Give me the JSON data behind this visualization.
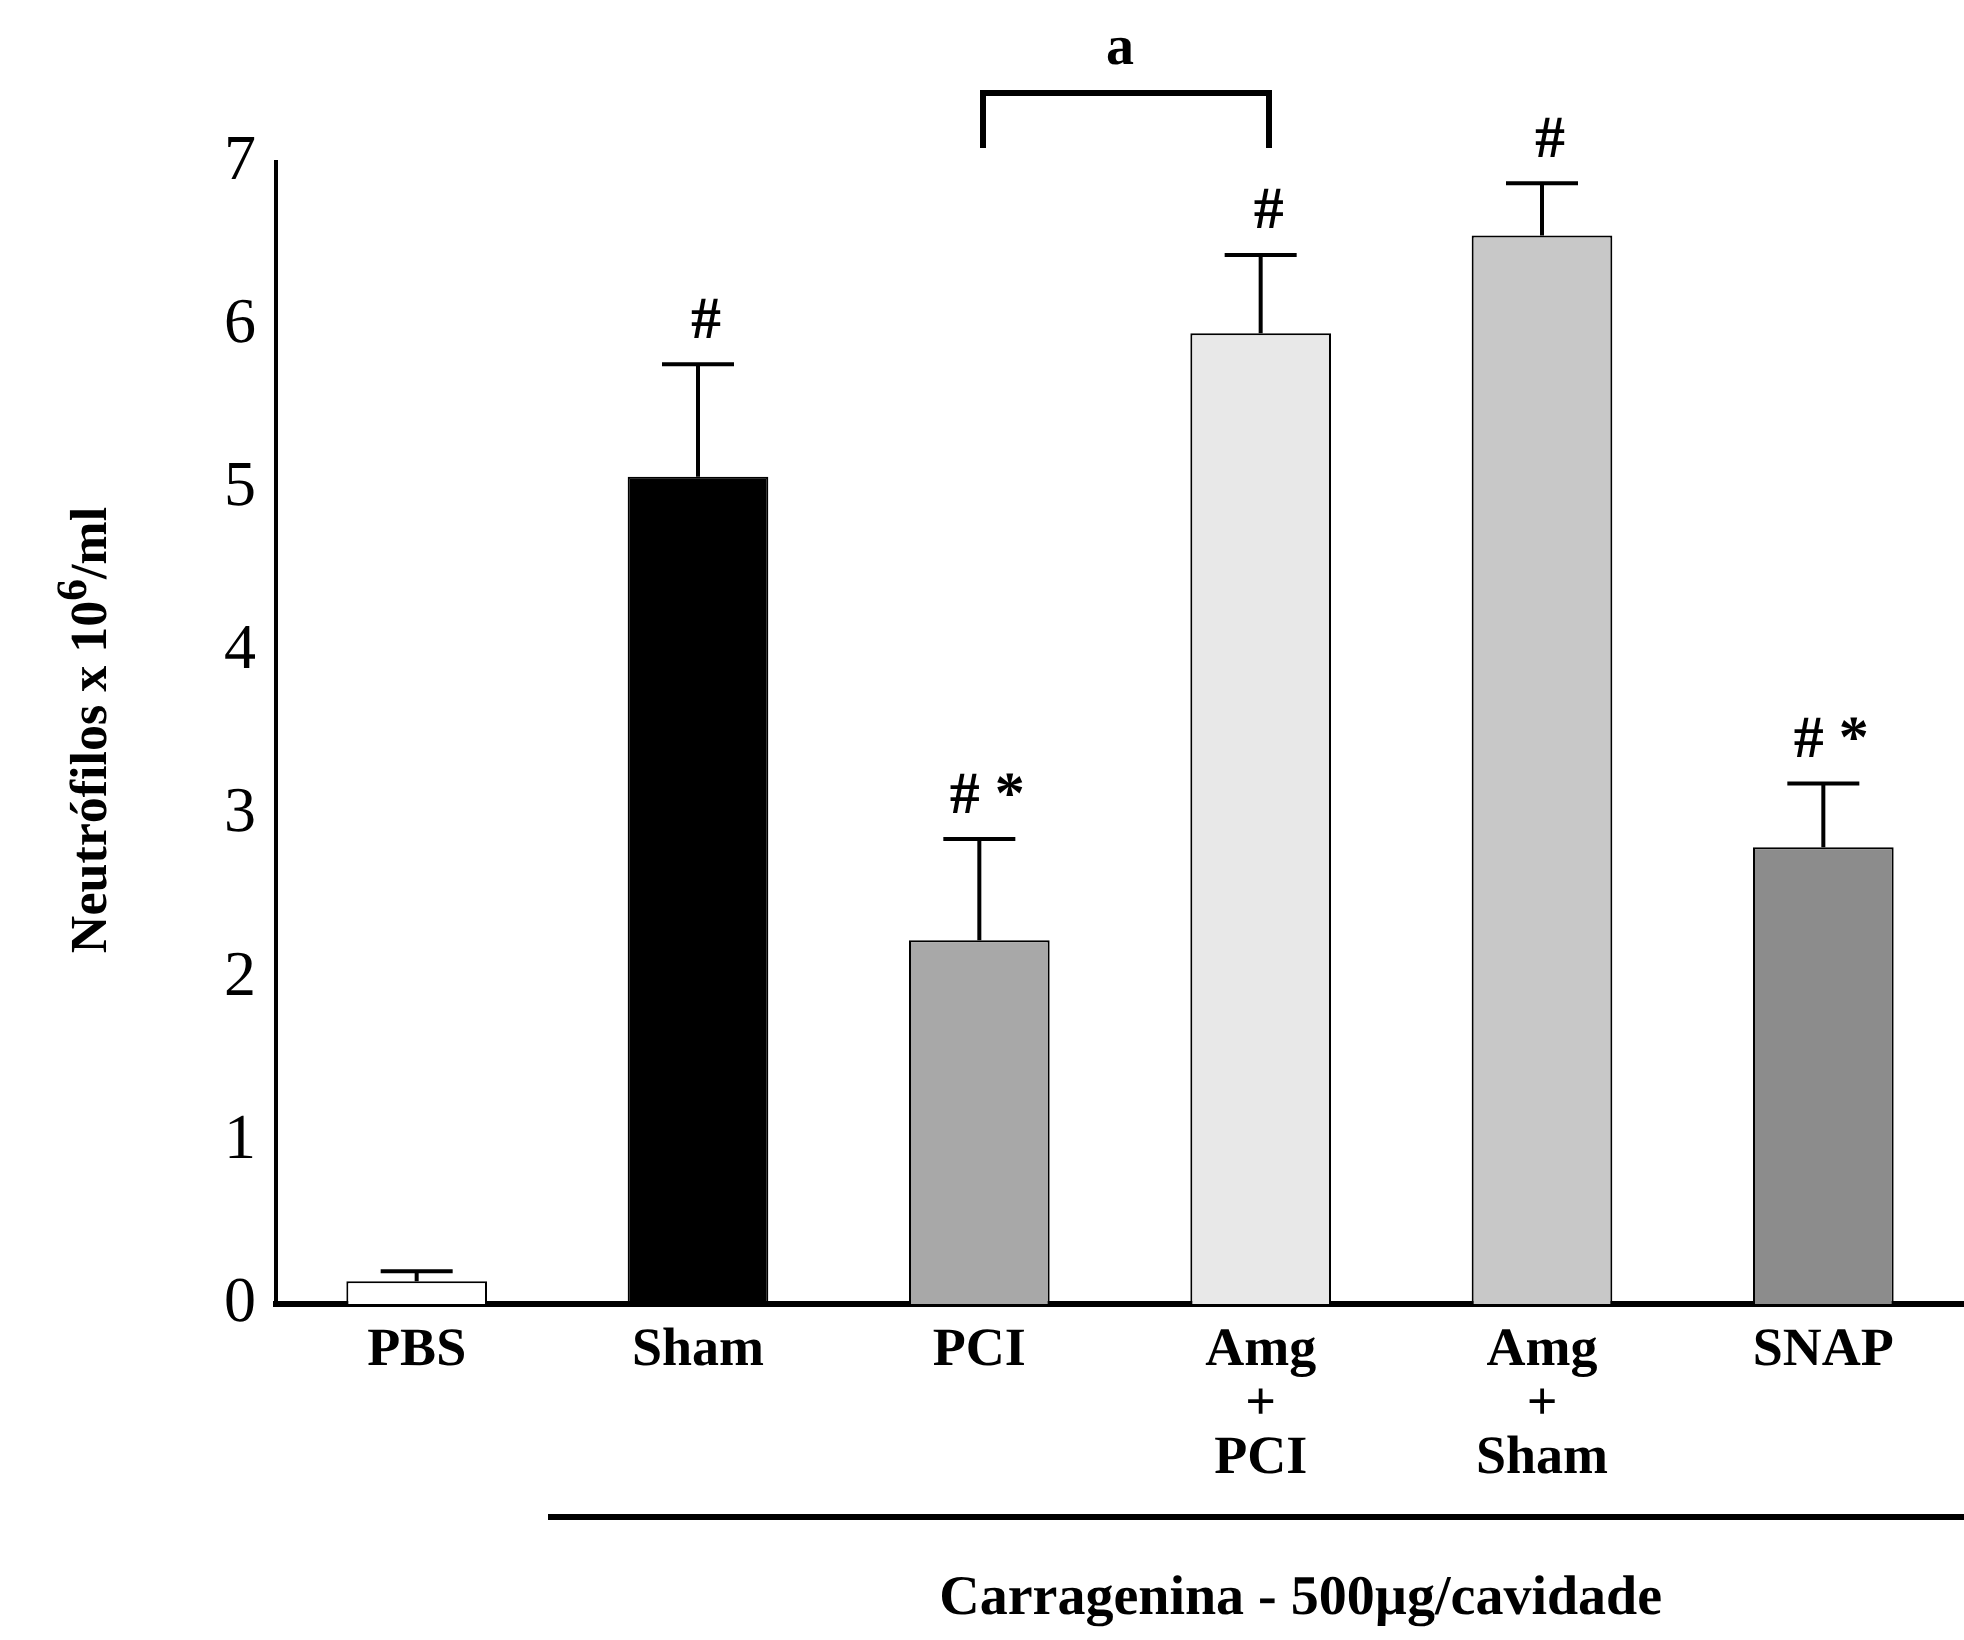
{
  "chart_data": {
    "type": "bar",
    "categories": [
      "PBS",
      "Sham",
      "PCI",
      "Amg\n+\nPCI",
      "Amg\n+\nSham",
      "SNAP"
    ],
    "values": [
      0.14,
      5.07,
      2.23,
      5.95,
      6.55,
      2.8
    ],
    "errors": [
      0.06,
      0.69,
      0.62,
      0.48,
      0.32,
      0.39
    ],
    "colors": [
      "#ffffff",
      "#000000",
      "#a8a8a8",
      "#e8e8e8",
      "#c8c8c8",
      "#8c8c8c"
    ],
    "ylim": [
      0,
      7
    ],
    "yticks": [
      0,
      1,
      2,
      3,
      4,
      5,
      6,
      7
    ],
    "ylabel": "Neutrófilos x 10$^{6}$/ml",
    "xlabel": "Carragenina - 500µg/cavidade",
    "annotations": [
      "a",
      {
        "text": "#",
        "x": "Sham",
        "y": 5.76
      },
      {
        "text": "# *",
        "x": "PCI",
        "y": 2.85
      },
      {
        "text": "#",
        "x": "Amg\n+\nPCI",
        "y": 6.43
      },
      {
        "text": "#",
        "x": "Amg\n+\nSham",
        "y": 6.87
      },
      {
        "text": "# *",
        "x": "SNAP",
        "y": 3.19
      }
    ],
    "grid": false,
    "legend": false
  }
}
